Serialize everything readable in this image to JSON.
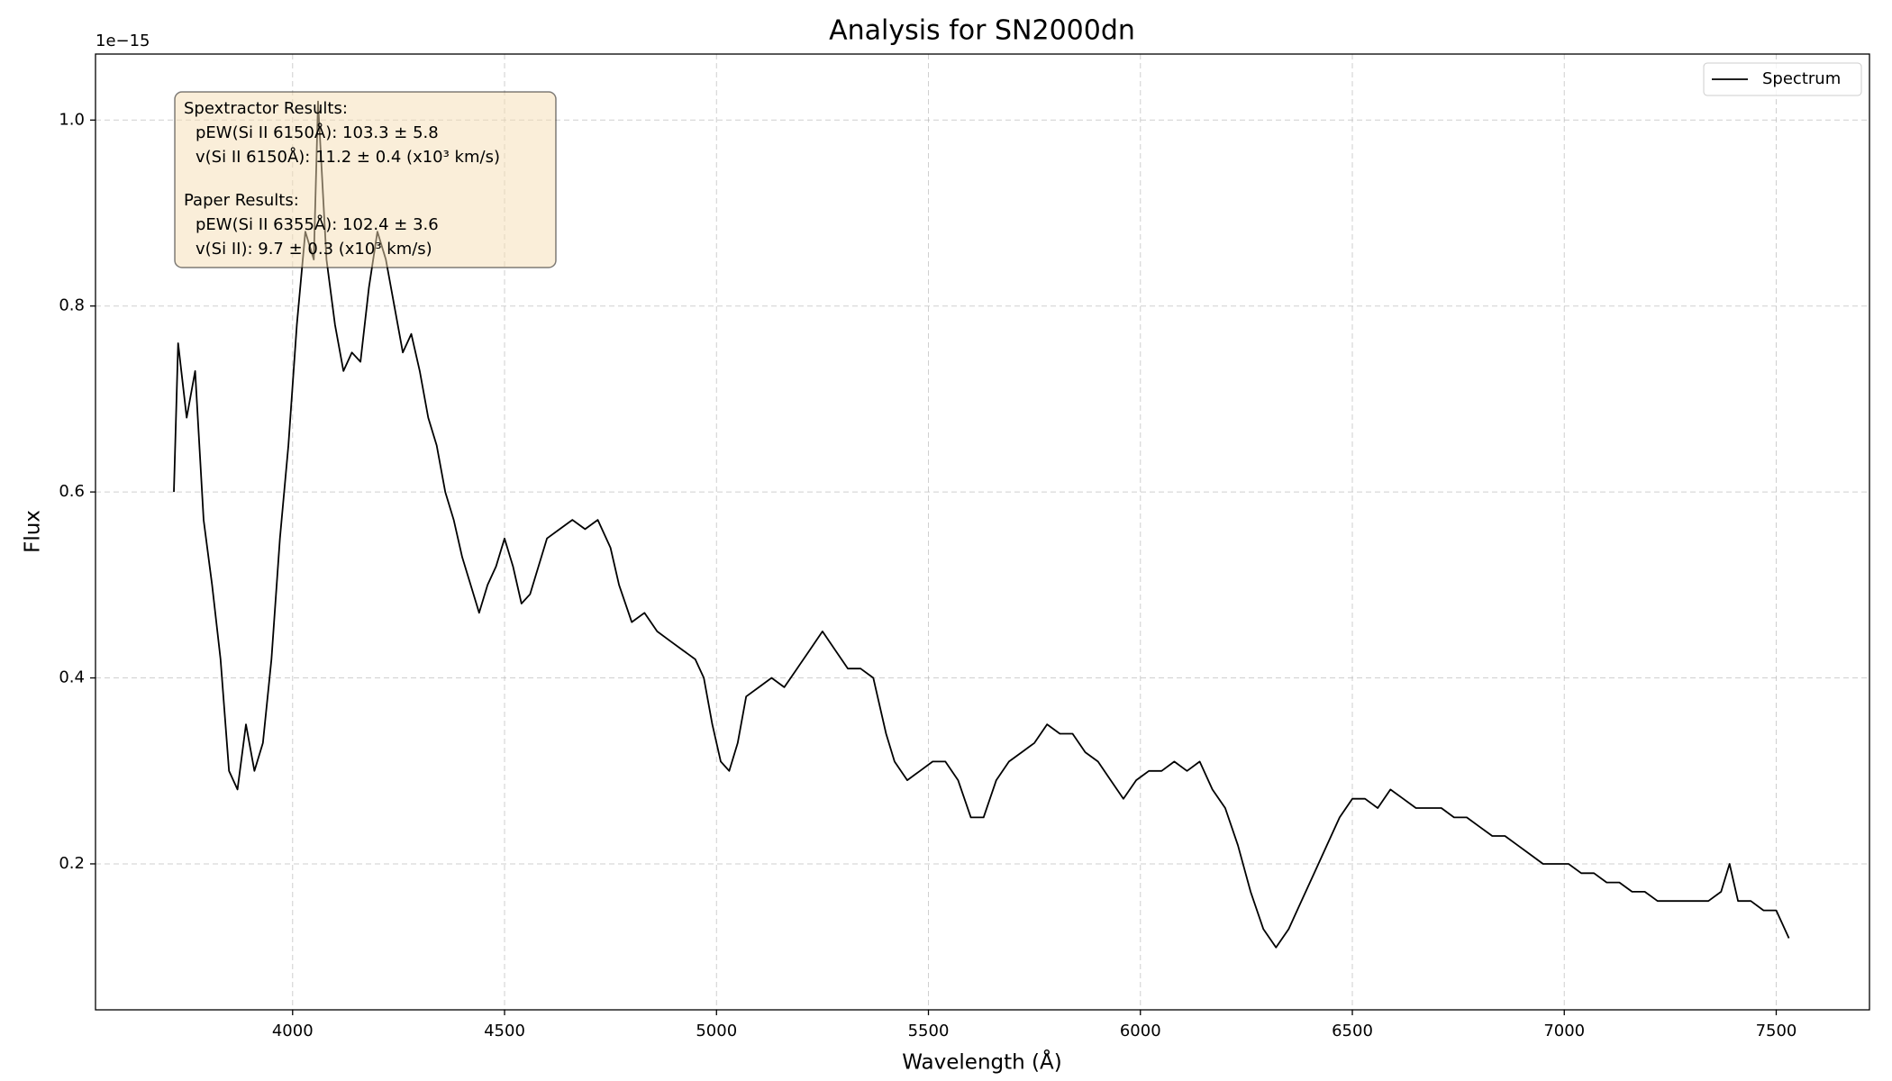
{
  "chart_data": {
    "type": "line",
    "title": "Analysis for SN2000dn",
    "xlabel": "Wavelength (Å)",
    "ylabel": "Flux",
    "y_offset_label": "1e−15",
    "x": [
      3720,
      3730,
      3750,
      3770,
      3790,
      3810,
      3830,
      3850,
      3870,
      3890,
      3910,
      3930,
      3950,
      3970,
      3990,
      4010,
      4030,
      4050,
      4060,
      4080,
      4100,
      4120,
      4140,
      4160,
      4180,
      4200,
      4220,
      4240,
      4260,
      4280,
      4300,
      4320,
      4340,
      4360,
      4380,
      4400,
      4420,
      4440,
      4460,
      4480,
      4500,
      4520,
      4540,
      4560,
      4580,
      4600,
      4630,
      4660,
      4690,
      4720,
      4750,
      4770,
      4800,
      4830,
      4860,
      4890,
      4920,
      4950,
      4970,
      4990,
      5010,
      5030,
      5050,
      5070,
      5100,
      5130,
      5160,
      5190,
      5220,
      5250,
      5280,
      5310,
      5340,
      5370,
      5400,
      5420,
      5450,
      5480,
      5510,
      5540,
      5570,
      5600,
      5630,
      5660,
      5690,
      5720,
      5750,
      5780,
      5810,
      5840,
      5870,
      5900,
      5930,
      5960,
      5990,
      6020,
      6050,
      6080,
      6110,
      6140,
      6170,
      6200,
      6230,
      6260,
      6290,
      6320,
      6350,
      6380,
      6410,
      6440,
      6470,
      6500,
      6530,
      6560,
      6590,
      6620,
      6650,
      6680,
      6710,
      6740,
      6770,
      6800,
      6830,
      6860,
      6890,
      6920,
      6950,
      6980,
      7010,
      7040,
      7070,
      7100,
      7130,
      7160,
      7190,
      7220,
      7250,
      7280,
      7310,
      7340,
      7370,
      7390,
      7410,
      7440,
      7470,
      7500,
      7530
    ],
    "series": [
      {
        "name": "Spectrum",
        "color": "#000000",
        "values": [
          0.6,
          0.76,
          0.68,
          0.73,
          0.57,
          0.5,
          0.42,
          0.3,
          0.28,
          0.35,
          0.3,
          0.33,
          0.42,
          0.55,
          0.65,
          0.78,
          0.88,
          0.85,
          1.02,
          0.85,
          0.78,
          0.73,
          0.75,
          0.74,
          0.82,
          0.88,
          0.85,
          0.8,
          0.75,
          0.77,
          0.73,
          0.68,
          0.65,
          0.6,
          0.57,
          0.53,
          0.5,
          0.47,
          0.5,
          0.52,
          0.55,
          0.52,
          0.48,
          0.49,
          0.52,
          0.55,
          0.56,
          0.57,
          0.56,
          0.57,
          0.54,
          0.5,
          0.46,
          0.47,
          0.45,
          0.44,
          0.43,
          0.42,
          0.4,
          0.35,
          0.31,
          0.3,
          0.33,
          0.38,
          0.39,
          0.4,
          0.39,
          0.41,
          0.43,
          0.45,
          0.43,
          0.41,
          0.41,
          0.4,
          0.34,
          0.31,
          0.29,
          0.3,
          0.31,
          0.31,
          0.29,
          0.25,
          0.25,
          0.29,
          0.31,
          0.32,
          0.33,
          0.35,
          0.34,
          0.34,
          0.32,
          0.31,
          0.29,
          0.27,
          0.29,
          0.3,
          0.3,
          0.31,
          0.3,
          0.31,
          0.28,
          0.26,
          0.22,
          0.17,
          0.13,
          0.11,
          0.13,
          0.16,
          0.19,
          0.22,
          0.25,
          0.27,
          0.27,
          0.26,
          0.28,
          0.27,
          0.26,
          0.26,
          0.26,
          0.25,
          0.25,
          0.24,
          0.23,
          0.23,
          0.22,
          0.21,
          0.2,
          0.2,
          0.2,
          0.19,
          0.19,
          0.18,
          0.18,
          0.17,
          0.17,
          0.16,
          0.16,
          0.16,
          0.16,
          0.16,
          0.17,
          0.2,
          0.16,
          0.16,
          0.15,
          0.15,
          0.12
        ]
      }
    ],
    "xlim": [
      3535,
      7720
    ],
    "ylim": [
      0.043,
      1.071
    ],
    "xticks": [
      4000,
      4500,
      5000,
      5500,
      6000,
      6500,
      7000,
      7500
    ],
    "yticks": [
      0.2,
      0.4,
      0.6,
      0.8,
      {
        "value": 1,
        "label": "1.0"
      }
    ],
    "grid": true,
    "legend": "upper right",
    "annotations": [
      {
        "title": "Spextractor Results:",
        "lines": [
          "pEW(Si II 6150Å): 103.3 ± 5.8",
          "v(Si II 6150Å): 11.2 ± 0.4 (x10³ km/s)"
        ]
      },
      {
        "title": "Paper Results:",
        "lines": [
          "pEW(Si II 6355Å): 102.4 ± 3.6",
          "v(Si II): 9.7 ± 0.3 (x10³ km/s)"
        ]
      }
    ]
  }
}
